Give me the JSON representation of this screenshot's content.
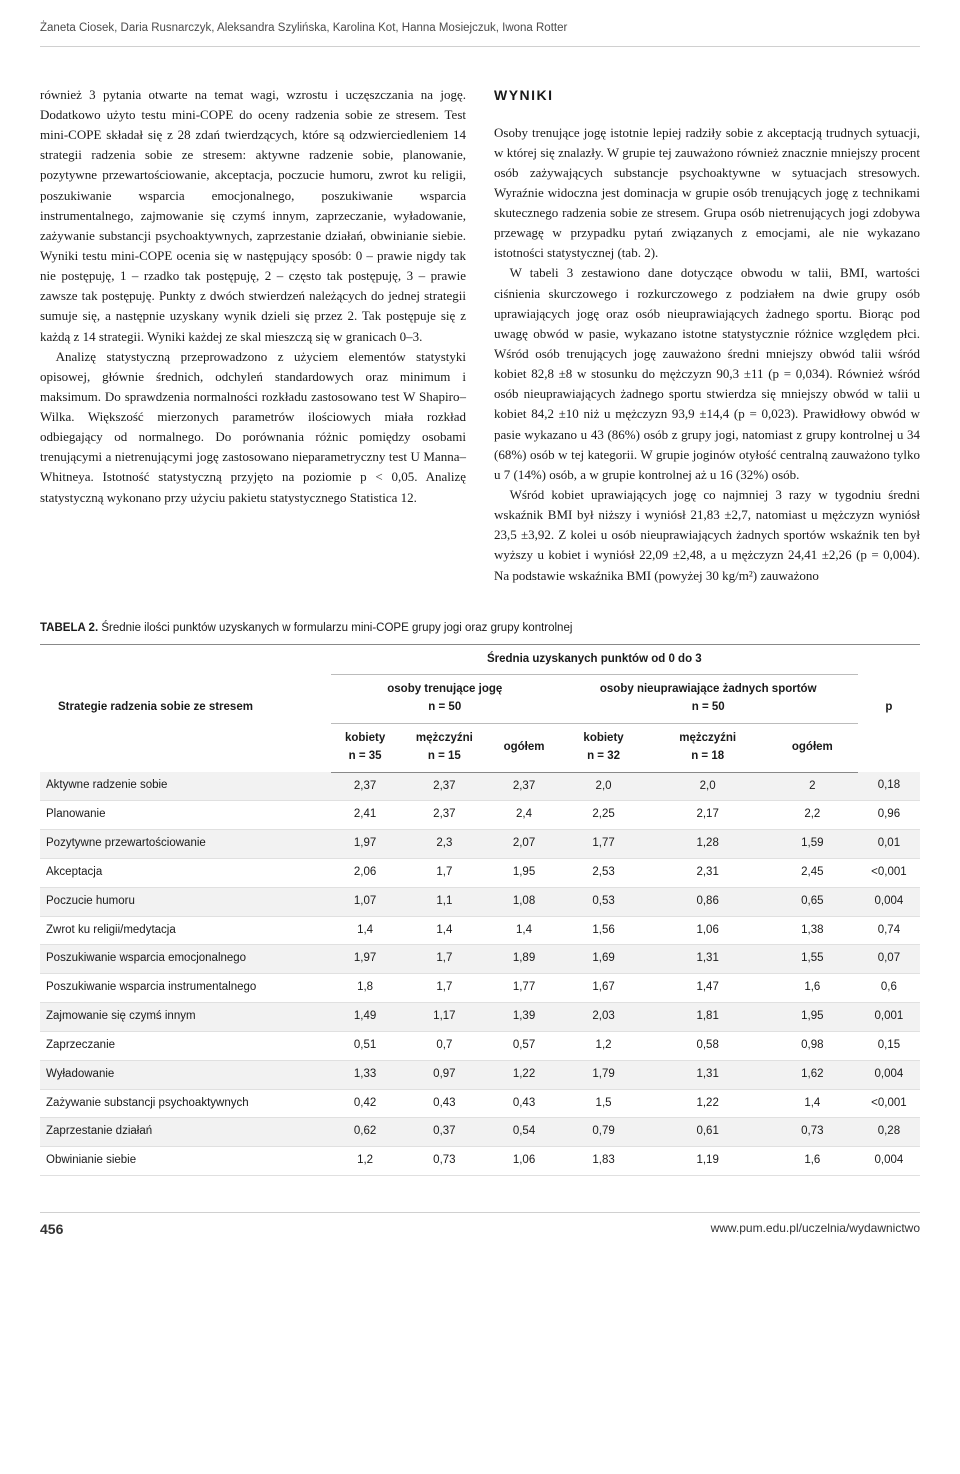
{
  "authors": "Żaneta Ciosek, Daria Rusnarczyk, Aleksandra Szylińska, Karolina Kot, Hanna Mosiejczuk, Iwona Rotter",
  "left": {
    "p1": "również 3 pytania otwarte na temat wagi, wzrostu i uczęszczania na jogę. Dodatkowo użyto testu mini-COPE do oceny radzenia sobie ze stresem. Test mini-COPE składał się z 28 zdań twierdzących, które są odzwierciedleniem 14 strategii radzenia sobie ze stresem: aktywne radzenie sobie, planowanie, pozytywne przewartościowanie, akceptacja, poczucie humoru, zwrot ku religii, poszukiwanie wsparcia emocjonalnego, poszukiwanie wsparcia instrumentalnego, zajmowanie się czymś innym, zaprzeczanie, wyładowanie, zażywanie substancji psychoaktywnych, zaprzestanie działań, obwinianie siebie. Wyniki testu mini-COPE ocenia się w następujący sposób: 0 – prawie nigdy tak nie postępuję, 1 – rzadko tak postępuję, 2 – często tak postępuję, 3 – prawie zawsze tak postępuję. Punkty z dwóch stwierdzeń należących do jednej strategii sumuje się, a następnie uzyskany wynik dzieli się przez 2. Tak postępuje się z każdą z 14 strategii. Wyniki każdej ze skal mieszczą się w granicach 0–3.",
    "p2": "Analizę statystyczną przeprowadzono z użyciem elementów statystyki opisowej, głównie średnich, odchyleń standardowych oraz minimum i maksimum. Do sprawdzenia normalności rozkładu zastosowano test W Shapiro–Wilka. Większość mierzonych parametrów ilościowych miała rozkład odbiegający od normalnego. Do porównania różnic pomiędzy osobami trenującymi a nietrenującymi jogę zastosowano nieparametryczny test U Manna–Whitneya. Istotność statystyczną przyjęto na poziomie p < 0,05. Analizę statystyczną wykonano przy użyciu pakietu statystycznego Statistica 12."
  },
  "right": {
    "heading": "WYNIKI",
    "p1": "Osoby trenujące jogę istotnie lepiej radziły sobie z akceptacją trudnych sytuacji, w której się znalazły. W grupie tej zauważono również znacznie mniejszy procent osób zażywających substancje psychoaktywne w sytuacjach stresowych. Wyraźnie widoczna jest dominacja w grupie osób trenujących jogę z technikami skutecznego radzenia sobie ze stresem. Grupa osób nietrenujących jogi zdobywa przewagę w przypadku pytań związanych z emocjami, ale nie wykazano istotności statystycznej (tab. 2).",
    "p2": "W tabeli 3 zestawiono dane dotyczące obwodu w talii, BMI, wartości ciśnienia skurczowego i rozkurczowego z podziałem na dwie grupy osób uprawiających jogę oraz osób nieuprawiających żadnego sportu. Biorąc pod uwagę obwód w pasie, wykazano istotne statystycznie różnice względem płci. Wśród osób trenujących jogę zauważono średni mniejszy obwód talii wśród kobiet 82,8 ±8 w stosunku do mężczyzn 90,3 ±11 (p = 0,034). Również wśród osób nieuprawiających żadnego sportu stwierdza się mniejszy obwód w talii u kobiet 84,2 ±10 niż u mężczyzn 93,9 ±14,4 (p = 0,023). Prawidłowy obwód w pasie wykazano u 43 (86%) osób z grupy jogi, natomiast z grupy kontrolnej u 34 (68%) osób w tej kategorii. W grupie joginów otyłość centralną zauważono tylko u 7 (14%) osób, a w grupie kontrolnej aż u 16 (32%) osób.",
    "p3": "Wśród kobiet uprawiających jogę co najmniej 3 razy w tygodniu średni wskaźnik BMI był niższy i wyniósł 21,83 ±2,7, natomiast u mężczyzn wyniósł 23,5 ±3,92. Z kolei u osób nieuprawiających żadnych sportów wskaźnik ten był wyższy u kobiet i wyniósł 22,09 ±2,48, a u mężczyzn 24,41 ±2,26 (p = 0,004). Na podstawie wskaźnika BMI (powyżej 30 kg/m²) zauważono"
  },
  "table": {
    "caption_label": "TABELA 2.",
    "caption_text": "Średnie ilości punktów uzyskanych w formularzu mini-COPE grupy jogi oraz grupy kontrolnej",
    "head": {
      "strategy": "Strategie radzenia sobie ze stresem",
      "mean_span": "Średnia uzyskanych punktów od 0 do 3",
      "yoga": "osoby trenujące jogę",
      "yoga_n": "n = 50",
      "none": "osoby nieuprawiające żadnych sportów",
      "none_n": "n = 50",
      "p": "p",
      "kobiety": "kobiety",
      "mezczyzni": "mężczyźni",
      "ogolem": "ogółem",
      "n35": "n = 35",
      "n15": "n = 15",
      "n32": "n = 32",
      "n18": "n = 18"
    },
    "rows": [
      {
        "label": "Aktywne radzenie sobie",
        "v": [
          "2,37",
          "2,37",
          "2,37",
          "2,0",
          "2,0",
          "2",
          "0,18"
        ]
      },
      {
        "label": "Planowanie",
        "v": [
          "2,41",
          "2,37",
          "2,4",
          "2,25",
          "2,17",
          "2,2",
          "0,96"
        ]
      },
      {
        "label": "Pozytywne przewartościowanie",
        "v": [
          "1,97",
          "2,3",
          "2,07",
          "1,77",
          "1,28",
          "1,59",
          "0,01"
        ]
      },
      {
        "label": "Akceptacja",
        "v": [
          "2,06",
          "1,7",
          "1,95",
          "2,53",
          "2,31",
          "2,45",
          "<0,001"
        ]
      },
      {
        "label": "Poczucie humoru",
        "v": [
          "1,07",
          "1,1",
          "1,08",
          "0,53",
          "0,86",
          "0,65",
          "0,004"
        ]
      },
      {
        "label": "Zwrot ku religii/medytacja",
        "v": [
          "1,4",
          "1,4",
          "1,4",
          "1,56",
          "1,06",
          "1,38",
          "0,74"
        ]
      },
      {
        "label": "Poszukiwanie wsparcia emocjonalnego",
        "v": [
          "1,97",
          "1,7",
          "1,89",
          "1,69",
          "1,31",
          "1,55",
          "0,07"
        ]
      },
      {
        "label": "Poszukiwanie wsparcia instrumentalnego",
        "v": [
          "1,8",
          "1,7",
          "1,77",
          "1,67",
          "1,47",
          "1,6",
          "0,6"
        ]
      },
      {
        "label": "Zajmowanie się czymś innym",
        "v": [
          "1,49",
          "1,17",
          "1,39",
          "2,03",
          "1,81",
          "1,95",
          "0,001"
        ]
      },
      {
        "label": "Zaprzeczanie",
        "v": [
          "0,51",
          "0,7",
          "0,57",
          "1,2",
          "0,58",
          "0,98",
          "0,15"
        ]
      },
      {
        "label": "Wyładowanie",
        "v": [
          "1,33",
          "0,97",
          "1,22",
          "1,79",
          "1,31",
          "1,62",
          "0,004"
        ]
      },
      {
        "label": "Zażywanie substancji psychoaktywnych",
        "v": [
          "0,42",
          "0,43",
          "0,43",
          "1,5",
          "1,22",
          "1,4",
          "<0,001"
        ]
      },
      {
        "label": "Zaprzestanie działań",
        "v": [
          "0,62",
          "0,37",
          "0,54",
          "0,79",
          "0,61",
          "0,73",
          "0,28"
        ]
      },
      {
        "label": "Obwinianie siebie",
        "v": [
          "1,2",
          "0,73",
          "1,06",
          "1,83",
          "1,19",
          "1,6",
          "0,004"
        ]
      }
    ]
  },
  "footer": {
    "page": "456",
    "url": "www.pum.edu.pl/uczelnia/wydawnictwo"
  }
}
